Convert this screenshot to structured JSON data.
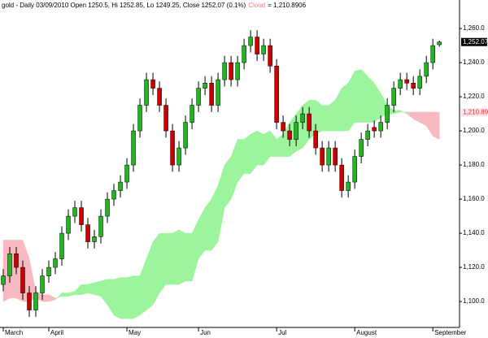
{
  "chart_data": {
    "type": "candlestick",
    "title": "gold - Daily 03/09/2010 Open 1250.5, Hi 1252.85, Lo 1249.25, Close 1252.07 (0.1%)",
    "cloud_label": "Cloud",
    "cloud_value_text": "= 1,210.8906",
    "up_color": "#22b422",
    "down_color": "#cc0000",
    "cloud_up_color": "#9cf59c",
    "cloud_down_color": "#f9b9c0",
    "xlim": [
      -0.5,
      70.1
    ],
    "xticks": [
      {
        "value": 0,
        "label": "March"
      },
      {
        "value": 7,
        "label": "April"
      },
      {
        "value": 19,
        "label": "May"
      },
      {
        "value": 30,
        "label": "Jun"
      },
      {
        "value": 42,
        "label": "Jul"
      },
      {
        "value": 54,
        "label": "August"
      },
      {
        "value": 66,
        "label": "September"
      }
    ],
    "ylim": [
      1084.8,
      1276.7
    ],
    "yticks": [
      {
        "value": 1100,
        "label": "1,100.0"
      },
      {
        "value": 1120,
        "label": "1,120.0"
      },
      {
        "value": 1140,
        "label": "1,140.0"
      },
      {
        "value": 1160,
        "label": "1,160.0"
      },
      {
        "value": 1180,
        "label": "1,180.0"
      },
      {
        "value": 1200,
        "label": "1,200.0"
      },
      {
        "value": 1220,
        "label": "1,220.0"
      },
      {
        "value": 1240,
        "label": "1,240.0"
      },
      {
        "value": 1260,
        "label": "1,260.0"
      }
    ],
    "open": [
      1110,
      1115,
      1128,
      1120,
      1105,
      1095,
      1105,
      1115,
      1120,
      1125,
      1140,
      1150,
      1155,
      1145,
      1135,
      1138,
      1150,
      1160,
      1165,
      1170,
      1180,
      1200,
      1215,
      1230,
      1225,
      1215,
      1200,
      1180,
      1190,
      1205,
      1215,
      1225,
      1228,
      1215,
      1230,
      1240,
      1230,
      1240,
      1250,
      1255,
      1245,
      1250,
      1238,
      1205,
      1200,
      1195,
      1205,
      1210,
      1200,
      1190,
      1180,
      1190,
      1180,
      1165,
      1170,
      1185,
      1195,
      1202,
      1200,
      1205,
      1215,
      1225,
      1230,
      1228,
      1225,
      1232,
      1240,
      1250.5
    ],
    "high": [
      1119,
      1132,
      1132,
      1124,
      1109,
      1109,
      1119,
      1124,
      1129,
      1144,
      1154,
      1159,
      1159,
      1149,
      1142,
      1154,
      1164,
      1169,
      1174,
      1184,
      1204,
      1219,
      1234,
      1234,
      1229,
      1219,
      1204,
      1194,
      1209,
      1219,
      1229,
      1232,
      1232,
      1234,
      1244,
      1244,
      1244,
      1254,
      1259,
      1259,
      1254,
      1254,
      1242,
      1209,
      1204,
      1209,
      1214,
      1214,
      1204,
      1194,
      1194,
      1194,
      1184,
      1174,
      1189,
      1199,
      1204,
      1206,
      1209,
      1219,
      1229,
      1234,
      1234,
      1232,
      1236,
      1244,
      1254,
      1252.85
    ],
    "low": [
      1106,
      1111,
      1116,
      1101,
      1091,
      1091,
      1101,
      1111,
      1116,
      1121,
      1136,
      1146,
      1141,
      1131,
      1131,
      1134,
      1146,
      1156,
      1161,
      1166,
      1176,
      1196,
      1211,
      1221,
      1211,
      1196,
      1176,
      1176,
      1186,
      1201,
      1211,
      1221,
      1211,
      1211,
      1226,
      1226,
      1226,
      1236,
      1246,
      1241,
      1241,
      1234,
      1201,
      1196,
      1191,
      1191,
      1201,
      1196,
      1186,
      1176,
      1176,
      1176,
      1161,
      1161,
      1166,
      1181,
      1191,
      1196,
      1196,
      1201,
      1211,
      1221,
      1224,
      1221,
      1221,
      1228,
      1236,
      1249.25
    ],
    "close": [
      1115,
      1128,
      1120,
      1105,
      1095,
      1105,
      1115,
      1120,
      1125,
      1140,
      1150,
      1155,
      1145,
      1135,
      1138,
      1150,
      1160,
      1165,
      1170,
      1180,
      1200,
      1215,
      1230,
      1225,
      1215,
      1200,
      1180,
      1190,
      1205,
      1215,
      1225,
      1228,
      1215,
      1230,
      1240,
      1230,
      1240,
      1250,
      1255,
      1245,
      1250,
      1238,
      1205,
      1200,
      1195,
      1205,
      1210,
      1200,
      1190,
      1180,
      1190,
      1180,
      1165,
      1170,
      1185,
      1195,
      1200,
      1200,
      1205,
      1215,
      1225,
      1230,
      1228,
      1225,
      1232,
      1240,
      1250,
      1252.07
    ],
    "close_label": "1,252.07",
    "span_a": [
      1100,
      1102,
      1102,
      1100,
      1100,
      1102,
      1100,
      1100,
      1101,
      1105,
      1105,
      1106,
      1110,
      1110,
      1111,
      1112,
      1113,
      1113,
      1114,
      1114,
      1115,
      1115,
      1125,
      1135,
      1140,
      1140,
      1140,
      1142,
      1140,
      1140,
      1148,
      1155,
      1160,
      1168,
      1180,
      1185,
      1195,
      1195,
      1198,
      1200,
      1198,
      1200,
      1195,
      1198,
      1205,
      1210,
      1215,
      1218,
      1218,
      1215,
      1215,
      1218,
      1225,
      1228,
      1235,
      1236,
      1232,
      1228,
      1222,
      1215,
      1212,
      1212,
      1210,
      1207,
      1205,
      1203,
      1197,
      1195
    ],
    "span_b": [
      1136,
      1136,
      1136,
      1136,
      1125,
      1106,
      1104,
      1104,
      1102,
      1103,
      1103,
      1104,
      1104,
      1105,
      1104,
      1103,
      1098,
      1092,
      1090,
      1090,
      1090,
      1092,
      1095,
      1098,
      1105,
      1110,
      1110,
      1110,
      1112,
      1112,
      1125,
      1130,
      1130,
      1135,
      1155,
      1160,
      1170,
      1175,
      1175,
      1180,
      1180,
      1185,
      1185,
      1185,
      1185,
      1188,
      1190,
      1195,
      1198,
      1200,
      1200,
      1200,
      1200,
      1200,
      1205,
      1205,
      1205,
      1205,
      1208,
      1210,
      1210,
      1211,
      1211,
      1211,
      1211,
      1211,
      1211,
      1210.8906
    ],
    "cloud_last_label": "1,210.89"
  }
}
